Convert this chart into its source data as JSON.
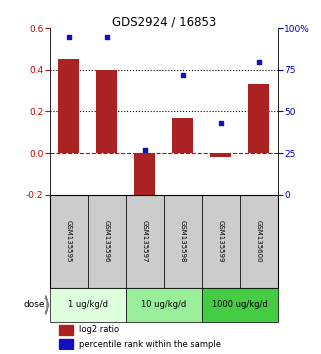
{
  "title": "GDS2924 / 16853",
  "samples": [
    "GSM135595",
    "GSM135596",
    "GSM135597",
    "GSM135598",
    "GSM135599",
    "GSM135600"
  ],
  "log2_ratio": [
    0.45,
    0.4,
    -0.25,
    0.17,
    -0.02,
    0.33
  ],
  "percentile_rank": [
    95,
    95,
    27,
    72,
    43,
    80
  ],
  "ylim_left": [
    -0.2,
    0.6
  ],
  "ylim_right": [
    0,
    100
  ],
  "yticks_left": [
    -0.2,
    0.0,
    0.2,
    0.4,
    0.6
  ],
  "yticks_right": [
    0,
    25,
    50,
    75,
    100
  ],
  "ytick_labels_right": [
    "0",
    "25",
    "50",
    "75",
    "100%"
  ],
  "hlines_dotted": [
    0.2,
    0.4
  ],
  "bar_color": "#aa2222",
  "scatter_color": "#1111bb",
  "dose_groups": [
    {
      "label": "1 ug/kg/d",
      "indices": [
        0,
        1
      ],
      "color": "#ddffdd"
    },
    {
      "label": "10 ug/kg/d",
      "indices": [
        2,
        3
      ],
      "color": "#99ee99"
    },
    {
      "label": "1000 ug/kg/d",
      "indices": [
        4,
        5
      ],
      "color": "#44cc44"
    }
  ],
  "dose_label": "dose",
  "legend_bar_label": "log2 ratio",
  "legend_scatter_label": "percentile rank within the sample",
  "bar_width": 0.55,
  "tick_label_color_left": "#cc0000",
  "tick_label_color_right": "#0000cc",
  "zero_line_color": "#cc0000",
  "sample_area_color": "#cccccc"
}
